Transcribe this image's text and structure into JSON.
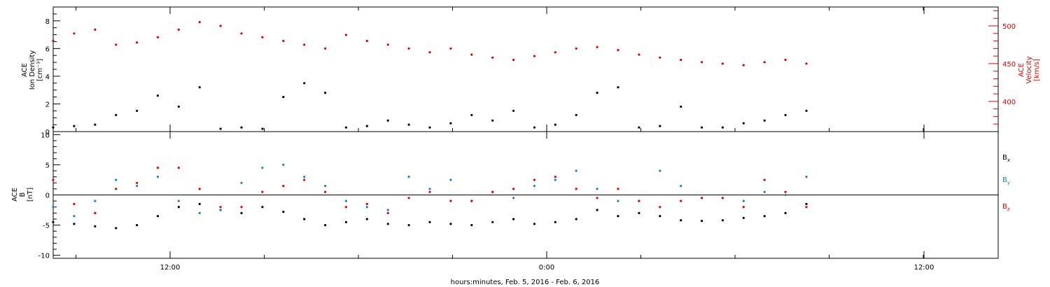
{
  "xlabel": "hours:minutes, Feb.  5, 2016 - Feb.  6, 2016",
  "x_tick_labels": [
    "12:00",
    "0:00",
    "12:00"
  ],
  "colors": {
    "black": "#000000",
    "red": "#e00000",
    "blue": "#1a7fd4"
  },
  "chart_data": [
    {
      "type": "scatter",
      "panel": "top",
      "ylabel": [
        "ACE",
        "Ion Density",
        "[cm⁻³]"
      ],
      "ylabel2": [
        "ACE",
        "Velocity",
        "[km/s]"
      ],
      "ylim": [
        0,
        9
      ],
      "ylim2": [
        360,
        525
      ],
      "yticks": [
        0,
        2,
        4,
        6,
        8
      ],
      "yticks2": [
        400,
        450,
        500
      ],
      "xlim_hours": [
        0,
        48
      ],
      "series": [
        {
          "axis": "left",
          "color": "black",
          "x": [
            0,
            1,
            2,
            3,
            4,
            5,
            6,
            7,
            8,
            9,
            10,
            11,
            12,
            13,
            14,
            15,
            16,
            17,
            18,
            19,
            20,
            21,
            22,
            23,
            24,
            25,
            26,
            27,
            28,
            29,
            30,
            31,
            32,
            33,
            34,
            35,
            36
          ],
          "y": [
            0.3,
            0.4,
            0.5,
            1.2,
            1.5,
            2.6,
            1.8,
            3.2,
            0.2,
            0.3,
            0.2,
            2.5,
            3.5,
            2.8,
            0.3,
            0.4,
            0.8,
            0.5,
            0.3,
            0.6,
            1.2,
            0.8,
            1.5,
            0.3,
            0.5,
            1.2,
            2.8,
            3.2,
            0.3,
            0.4,
            1.8,
            0.3,
            0.3,
            0.6,
            0.8,
            1.2,
            1.5
          ]
        },
        {
          "axis": "right",
          "color": "red",
          "x": [
            0,
            1,
            2,
            3,
            4,
            5,
            6,
            7,
            8,
            9,
            10,
            11,
            12,
            13,
            14,
            15,
            16,
            17,
            18,
            19,
            20,
            21,
            22,
            23,
            24,
            25,
            26,
            27,
            28,
            29,
            30,
            31,
            32,
            33,
            34,
            35,
            36
          ],
          "y": [
            480,
            490,
            495,
            475,
            478,
            485,
            495,
            505,
            500,
            490,
            485,
            480,
            475,
            470,
            488,
            480,
            475,
            470,
            465,
            470,
            462,
            458,
            455,
            460,
            465,
            470,
            472,
            468,
            462,
            458,
            455,
            452,
            450,
            448,
            452,
            455,
            450
          ]
        }
      ]
    },
    {
      "type": "scatter",
      "panel": "bottom",
      "ylabel": [
        "ACE",
        "B",
        "[nT]"
      ],
      "ylim": [
        -10.5,
        10.5
      ],
      "yticks": [
        -10,
        -5,
        0,
        5,
        10
      ],
      "zero_line": true,
      "xlim_hours": [
        0,
        48
      ],
      "series": [
        {
          "name": "B",
          "sub": "x",
          "color": "black",
          "x": [
            0,
            1,
            2,
            3,
            4,
            5,
            6,
            7,
            8,
            9,
            10,
            11,
            12,
            13,
            14,
            15,
            16,
            17,
            18,
            19,
            20,
            21,
            22,
            23,
            24,
            25,
            26,
            27,
            28,
            29,
            30,
            31,
            32,
            33,
            34,
            35,
            36
          ],
          "y": [
            -4.5,
            -4.8,
            -5.2,
            -5.5,
            -5.0,
            -3.5,
            -2.0,
            -1.5,
            -2.5,
            -3.0,
            -2.0,
            -2.8,
            -4.0,
            -5.0,
            -4.5,
            -4.0,
            -4.8,
            -5.0,
            -4.5,
            -4.8,
            -5.0,
            -4.5,
            -4.0,
            -4.8,
            -4.5,
            -4.0,
            -2.5,
            -3.5,
            -3.0,
            -3.5,
            -4.2,
            -4.3,
            -4.2,
            -3.8,
            -3.5,
            -3.0,
            -1.5
          ]
        },
        {
          "name": "B",
          "sub": "y",
          "color": "blue",
          "x": [
            0,
            1,
            2,
            3,
            4,
            5,
            6,
            7,
            8,
            9,
            10,
            11,
            12,
            13,
            14,
            15,
            16,
            17,
            18,
            19,
            20,
            21,
            22,
            23,
            24,
            25,
            26,
            27,
            28,
            29,
            30,
            31,
            32,
            33,
            34,
            35,
            36
          ],
          "y": [
            -2.0,
            -3.5,
            -1.0,
            2.5,
            1.5,
            3.0,
            -1.0,
            -3.0,
            -2.5,
            2.0,
            4.5,
            5.0,
            3.0,
            1.5,
            -1.0,
            -2.0,
            -2.5,
            3.0,
            1.0,
            2.5,
            -1.0,
            0.5,
            -0.5,
            1.5,
            2.5,
            4.0,
            1.0,
            -1.0,
            -1.0,
            4.0,
            1.5,
            -0.5,
            -0.5,
            -1.0,
            0.5,
            0.0,
            3.0
          ]
        },
        {
          "name": "B",
          "sub": "z",
          "color": "red",
          "x": [
            0,
            1,
            2,
            3,
            4,
            5,
            6,
            7,
            8,
            9,
            10,
            11,
            12,
            13,
            14,
            15,
            16,
            17,
            18,
            19,
            20,
            21,
            22,
            23,
            24,
            25,
            26,
            27,
            28,
            29,
            30,
            31,
            32,
            33,
            34,
            35,
            36
          ],
          "y": [
            2.5,
            -1.5,
            -3.0,
            1.0,
            2.0,
            4.5,
            4.5,
            1.0,
            -2.0,
            -2.0,
            0.5,
            1.5,
            2.5,
            0.5,
            -2.0,
            -1.5,
            -3.0,
            -0.5,
            0.5,
            -1.0,
            -1.0,
            0.5,
            1.0,
            2.5,
            3.0,
            1.0,
            -0.5,
            1.0,
            -1.0,
            -2.0,
            -1.0,
            -0.5,
            -0.5,
            -2.0,
            2.5,
            0.5,
            -2.0
          ]
        }
      ]
    }
  ]
}
